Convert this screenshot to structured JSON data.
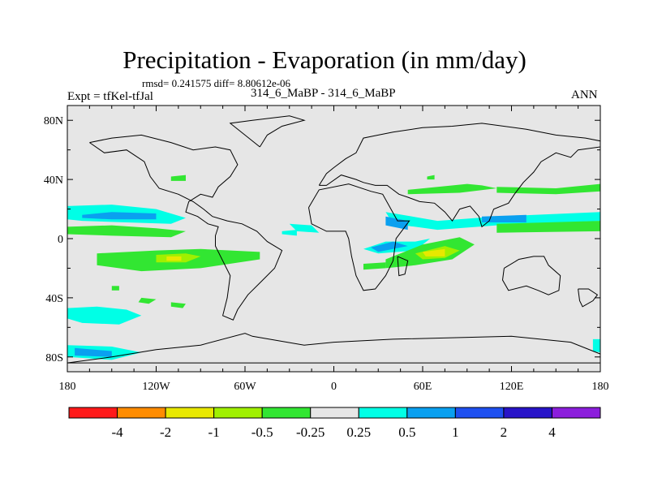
{
  "title": "Precipitation - Evaporation (in mm/day)",
  "stats_line": "rmsd= 0.241575 diff= 8.80612e-06",
  "left_label": "Expt = tfKel-tfJal",
  "center_label": "314_6_MaBP - 314_6_MaBP",
  "right_label": "ANN",
  "colors": {
    "background": "#ffffff",
    "map_fill": "#e6e6e6",
    "outline": "#000000",
    "levels": [
      "#ff1a1a",
      "#ff8c00",
      "#e8e800",
      "#a0f000",
      "#32e632",
      "#e6e6e6",
      "#00ffe6",
      "#0aa0f0",
      "#1e50f0",
      "#2814c8",
      "#8c1edc"
    ]
  },
  "chart_data": {
    "type": "heatmap",
    "title": "Precipitation - Evaporation (in mm/day)",
    "xlabel": "",
    "ylabel": "",
    "xlim": [
      -180,
      180
    ],
    "ylim": [
      -90,
      90
    ],
    "x_ticks": [
      {
        "value": -180,
        "label": "180"
      },
      {
        "value": -120,
        "label": "120W"
      },
      {
        "value": -60,
        "label": "60W"
      },
      {
        "value": 0,
        "label": "0"
      },
      {
        "value": 60,
        "label": "60E"
      },
      {
        "value": 120,
        "label": "120E"
      },
      {
        "value": 180,
        "label": "180"
      }
    ],
    "y_ticks": [
      {
        "value": 80,
        "label": "80N"
      },
      {
        "value": 40,
        "label": "40N"
      },
      {
        "value": 0,
        "label": "0"
      },
      {
        "value": -40,
        "label": "40S"
      },
      {
        "value": -80,
        "label": "80S"
      }
    ],
    "colorbar_levels": [
      "-4",
      "-2",
      "-1",
      "-0.5",
      "-0.25",
      "0.25",
      "0.5",
      "1",
      "2",
      "4"
    ],
    "regions": [
      {
        "level": 6,
        "points": [
          [
            -180,
            22
          ],
          [
            -150,
            23
          ],
          [
            -120,
            20
          ],
          [
            -100,
            14
          ],
          [
            -110,
            10
          ],
          [
            -140,
            11
          ],
          [
            -170,
            12
          ],
          [
            -180,
            13
          ]
        ]
      },
      {
        "level": 7,
        "points": [
          [
            -170,
            16
          ],
          [
            -150,
            18
          ],
          [
            -120,
            17
          ],
          [
            -120,
            13
          ],
          [
            -150,
            13
          ],
          [
            -170,
            14
          ]
        ]
      },
      {
        "level": 6,
        "points": [
          [
            -180,
            -47
          ],
          [
            -160,
            -46
          ],
          [
            -140,
            -48
          ],
          [
            -130,
            -52
          ],
          [
            -145,
            -58
          ],
          [
            -170,
            -57
          ],
          [
            -180,
            -54
          ]
        ]
      },
      {
        "level": 6,
        "points": [
          [
            -180,
            -72
          ],
          [
            -150,
            -73
          ],
          [
            -130,
            -77
          ],
          [
            -150,
            -82
          ],
          [
            -180,
            -80
          ]
        ]
      },
      {
        "level": 7,
        "points": [
          [
            -175,
            -74
          ],
          [
            -150,
            -76
          ],
          [
            -150,
            -80
          ],
          [
            -175,
            -79
          ]
        ]
      },
      {
        "level": 4,
        "points": [
          [
            -180,
            8
          ],
          [
            -150,
            9
          ],
          [
            -120,
            7
          ],
          [
            -100,
            5
          ],
          [
            -110,
            1
          ],
          [
            -150,
            2
          ],
          [
            -180,
            3
          ]
        ]
      },
      {
        "level": 4,
        "points": [
          [
            -160,
            -10
          ],
          [
            -120,
            -8
          ],
          [
            -90,
            -7
          ],
          [
            -50,
            -9
          ],
          [
            -50,
            -14
          ],
          [
            -90,
            -20
          ],
          [
            -130,
            -22
          ],
          [
            -160,
            -18
          ]
        ]
      },
      {
        "level": 3,
        "points": [
          [
            -120,
            -11
          ],
          [
            -100,
            -10
          ],
          [
            -90,
            -12
          ],
          [
            -100,
            -16
          ],
          [
            -120,
            -16
          ]
        ]
      },
      {
        "level": 2,
        "points": [
          [
            -113,
            -12
          ],
          [
            -103,
            -12
          ],
          [
            -103,
            -15
          ],
          [
            -113,
            -15
          ]
        ]
      },
      {
        "level": 4,
        "points": [
          [
            -110,
            42
          ],
          [
            -100,
            43
          ],
          [
            -100,
            39
          ],
          [
            -110,
            39
          ]
        ]
      },
      {
        "level": 4,
        "points": [
          [
            -150,
            -32
          ],
          [
            -145,
            -32
          ],
          [
            -145,
            -35
          ],
          [
            -150,
            -35
          ]
        ]
      },
      {
        "level": 4,
        "points": [
          [
            -130,
            -40
          ],
          [
            -120,
            -41
          ],
          [
            -125,
            -44
          ],
          [
            -132,
            -43
          ]
        ]
      },
      {
        "level": 4,
        "points": [
          [
            -110,
            -43
          ],
          [
            -100,
            -44
          ],
          [
            -102,
            -47
          ],
          [
            -110,
            -46
          ]
        ]
      },
      {
        "level": 6,
        "points": [
          [
            -30,
            10
          ],
          [
            -15,
            9
          ],
          [
            -10,
            4
          ],
          [
            -25,
            5
          ]
        ]
      },
      {
        "level": 6,
        "points": [
          [
            -35,
            5
          ],
          [
            -25,
            6
          ],
          [
            -25,
            2
          ],
          [
            -35,
            3
          ]
        ]
      },
      {
        "level": 6,
        "points": [
          [
            35,
            18
          ],
          [
            70,
            12
          ],
          [
            110,
            15
          ],
          [
            180,
            18
          ],
          [
            180,
            12
          ],
          [
            110,
            9
          ],
          [
            70,
            6
          ],
          [
            40,
            10
          ]
        ]
      },
      {
        "level": 7,
        "points": [
          [
            35,
            15
          ],
          [
            50,
            12
          ],
          [
            50,
            6
          ],
          [
            35,
            9
          ]
        ]
      },
      {
        "level": 7,
        "points": [
          [
            100,
            15
          ],
          [
            130,
            16
          ],
          [
            130,
            11
          ],
          [
            100,
            11
          ]
        ]
      },
      {
        "level": 6,
        "points": [
          [
            20,
            -7
          ],
          [
            35,
            -2
          ],
          [
            55,
            -2
          ],
          [
            65,
            0
          ],
          [
            55,
            -8
          ],
          [
            30,
            -10
          ]
        ]
      },
      {
        "level": 7,
        "points": [
          [
            25,
            -6
          ],
          [
            40,
            -2
          ],
          [
            50,
            -5
          ],
          [
            30,
            -9
          ]
        ]
      },
      {
        "level": 4,
        "points": [
          [
            35,
            -14
          ],
          [
            60,
            -4
          ],
          [
            85,
            1
          ],
          [
            95,
            -4
          ],
          [
            80,
            -14
          ],
          [
            55,
            -18
          ],
          [
            35,
            -20
          ]
        ]
      },
      {
        "level": 3,
        "points": [
          [
            55,
            -10
          ],
          [
            75,
            -5
          ],
          [
            85,
            -8
          ],
          [
            75,
            -13
          ],
          [
            60,
            -14
          ]
        ]
      },
      {
        "level": 2,
        "points": [
          [
            60,
            -9
          ],
          [
            75,
            -7
          ],
          [
            75,
            -12
          ],
          [
            62,
            -12
          ]
        ]
      },
      {
        "level": 4,
        "points": [
          [
            20,
            -17
          ],
          [
            35,
            -16
          ],
          [
            35,
            -20
          ],
          [
            20,
            -21
          ]
        ]
      },
      {
        "level": 4,
        "points": [
          [
            110,
            10
          ],
          [
            180,
            12
          ],
          [
            180,
            5
          ],
          [
            110,
            4
          ]
        ]
      },
      {
        "level": 4,
        "points": [
          [
            50,
            33
          ],
          [
            90,
            37
          ],
          [
            100,
            36
          ],
          [
            110,
            34
          ],
          [
            85,
            31
          ],
          [
            50,
            30
          ]
        ]
      },
      {
        "level": 4,
        "points": [
          [
            110,
            35
          ],
          [
            150,
            34
          ],
          [
            180,
            37
          ],
          [
            180,
            32
          ],
          [
            150,
            30
          ],
          [
            110,
            31
          ]
        ]
      },
      {
        "level": 4,
        "points": [
          [
            63,
            42
          ],
          [
            68,
            43
          ],
          [
            68,
            40
          ],
          [
            63,
            40
          ]
        ]
      },
      {
        "level": 6,
        "points": [
          [
            175,
            -68
          ],
          [
            180,
            -68
          ],
          [
            180,
            -77
          ],
          [
            175,
            -76
          ]
        ]
      }
    ],
    "coastlines": [
      [
        [
          -165,
          65
        ],
        [
          -150,
          68
        ],
        [
          -130,
          70
        ],
        [
          -110,
          65
        ],
        [
          -95,
          60
        ],
        [
          -80,
          62
        ],
        [
          -70,
          60
        ],
        [
          -65,
          50
        ],
        [
          -70,
          42
        ],
        [
          -78,
          35
        ],
        [
          -82,
          28
        ],
        [
          -90,
          30
        ],
        [
          -98,
          25
        ],
        [
          -100,
          18
        ],
        [
          -92,
          15
        ],
        [
          -85,
          10
        ],
        [
          -78,
          8
        ],
        [
          -80,
          2
        ],
        [
          -80,
          -5
        ],
        [
          -75,
          -15
        ],
        [
          -70,
          -25
        ],
        [
          -72,
          -40
        ],
        [
          -75,
          -52
        ],
        [
          -68,
          -55
        ],
        [
          -65,
          -48
        ],
        [
          -58,
          -38
        ],
        [
          -48,
          -28
        ],
        [
          -40,
          -20
        ],
        [
          -35,
          -8
        ],
        [
          -45,
          -2
        ],
        [
          -52,
          5
        ],
        [
          -62,
          10
        ],
        [
          -72,
          12
        ],
        [
          -82,
          15
        ],
        [
          -88,
          20
        ],
        [
          -95,
          25
        ],
        [
          -105,
          30
        ],
        [
          -118,
          34
        ],
        [
          -124,
          42
        ],
        [
          -128,
          52
        ],
        [
          -140,
          60
        ],
        [
          -155,
          58
        ],
        [
          -165,
          65
        ]
      ],
      [
        [
          -10,
          36
        ],
        [
          -5,
          44
        ],
        [
          0,
          48
        ],
        [
          8,
          54
        ],
        [
          15,
          58
        ],
        [
          20,
          68
        ],
        [
          30,
          70
        ],
        [
          40,
          72
        ],
        [
          60,
          75
        ],
        [
          80,
          76
        ],
        [
          100,
          78
        ],
        [
          130,
          74
        ],
        [
          150,
          70
        ],
        [
          170,
          68
        ],
        [
          180,
          66
        ],
        [
          180,
          62
        ],
        [
          165,
          60
        ],
        [
          160,
          55
        ],
        [
          150,
          58
        ],
        [
          140,
          52
        ],
        [
          135,
          45
        ],
        [
          128,
          38
        ],
        [
          122,
          30
        ],
        [
          118,
          24
        ],
        [
          108,
          20
        ],
        [
          105,
          12
        ],
        [
          100,
          8
        ],
        [
          98,
          15
        ],
        [
          92,
          22
        ],
        [
          85,
          20
        ],
        [
          80,
          12
        ],
        [
          75,
          18
        ],
        [
          68,
          24
        ],
        [
          58,
          25
        ],
        [
          50,
          28
        ],
        [
          44,
          30
        ],
        [
          36,
          36
        ],
        [
          28,
          36
        ],
        [
          20,
          38
        ],
        [
          15,
          40
        ],
        [
          5,
          43
        ],
        [
          -5,
          36
        ],
        [
          -10,
          36
        ]
      ],
      [
        [
          -17,
          21
        ],
        [
          -10,
          33
        ],
        [
          10,
          37
        ],
        [
          25,
          32
        ],
        [
          33,
          30
        ],
        [
          43,
          12
        ],
        [
          51,
          12
        ],
        [
          42,
          0
        ],
        [
          40,
          -15
        ],
        [
          35,
          -25
        ],
        [
          28,
          -34
        ],
        [
          20,
          -35
        ],
        [
          15,
          -25
        ],
        [
          12,
          -12
        ],
        [
          10,
          0
        ],
        [
          8,
          5
        ],
        [
          -5,
          5
        ],
        [
          -15,
          10
        ],
        [
          -17,
          21
        ]
      ],
      [
        [
          115,
          -20
        ],
        [
          125,
          -14
        ],
        [
          135,
          -12
        ],
        [
          142,
          -12
        ],
        [
          145,
          -18
        ],
        [
          153,
          -25
        ],
        [
          152,
          -35
        ],
        [
          145,
          -38
        ],
        [
          138,
          -35
        ],
        [
          130,
          -32
        ],
        [
          118,
          -35
        ],
        [
          114,
          -28
        ],
        [
          115,
          -20
        ]
      ],
      [
        [
          -50,
          62
        ],
        [
          -45,
          70
        ],
        [
          -35,
          76
        ],
        [
          -20,
          80
        ],
        [
          -30,
          83
        ],
        [
          -55,
          80
        ],
        [
          -70,
          78
        ],
        [
          -60,
          70
        ],
        [
          -50,
          62
        ]
      ],
      [
        [
          -180,
          -84
        ],
        [
          -150,
          -80
        ],
        [
          -120,
          -75
        ],
        [
          -90,
          -72
        ],
        [
          -60,
          -64
        ],
        [
          -55,
          -66
        ],
        [
          -20,
          -72
        ],
        [
          0,
          -70
        ],
        [
          40,
          -68
        ],
        [
          80,
          -67
        ],
        [
          120,
          -66
        ],
        [
          160,
          -70
        ],
        [
          180,
          -78
        ],
        [
          180,
          -84
        ]
      ],
      [
        [
          -180,
          -84
        ],
        [
          180,
          -84
        ]
      ],
      [
        [
          165,
          -34
        ],
        [
          172,
          -34
        ],
        [
          178,
          -38
        ],
        [
          175,
          -42
        ],
        [
          168,
          -46
        ],
        [
          166,
          -42
        ],
        [
          165,
          -34
        ]
      ],
      [
        [
          43,
          -12
        ],
        [
          50,
          -15
        ],
        [
          48,
          -24
        ],
        [
          44,
          -25
        ],
        [
          43,
          -12
        ]
      ]
    ]
  }
}
